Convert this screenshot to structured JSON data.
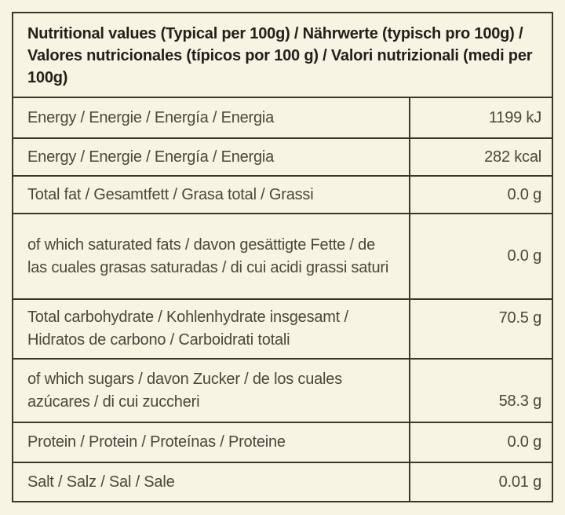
{
  "colors": {
    "background": "#f8f4e4",
    "border": "#3a382d",
    "body_text": "#4a473c",
    "header_text": "#21201a"
  },
  "table": {
    "header": "Nutritional values (Typical per 100g) / Nährwerte (typisch pro 100g) / Valores nutricionales (típicos por 100 g) / Valori nutrizionali (medi per 100g)",
    "rows": [
      {
        "label": "Energy / Energie / Energía / Energia",
        "value": "1199 kJ"
      },
      {
        "label": "Energy / Energie / Energía / Energia",
        "value": "282 kcal"
      },
      {
        "label": "Total fat / Gesamtfett / Grasa total / Grassi",
        "value": "0.0 g"
      },
      {
        "label": "of which saturated fats /  davon gesättigte Fette / de las cuales grasas saturadas / di cui acidi grassi saturi",
        "value": "0.0 g"
      },
      {
        "label": "Total carbohydrate / Kohlenhydrate insgesamt / Hidratos de carbono / Carboidrati totali",
        "value": "70.5 g"
      },
      {
        "label": "of which sugars / davon Zucker / de los cuales azúcares / di cui zuccheri",
        "value": "58.3 g"
      },
      {
        "label": "Protein / Protein / Proteínas / Proteine",
        "value": "0.0 g"
      },
      {
        "label": "Salt / Salz / Sal / Sale",
        "value": "0.01 g"
      }
    ]
  }
}
